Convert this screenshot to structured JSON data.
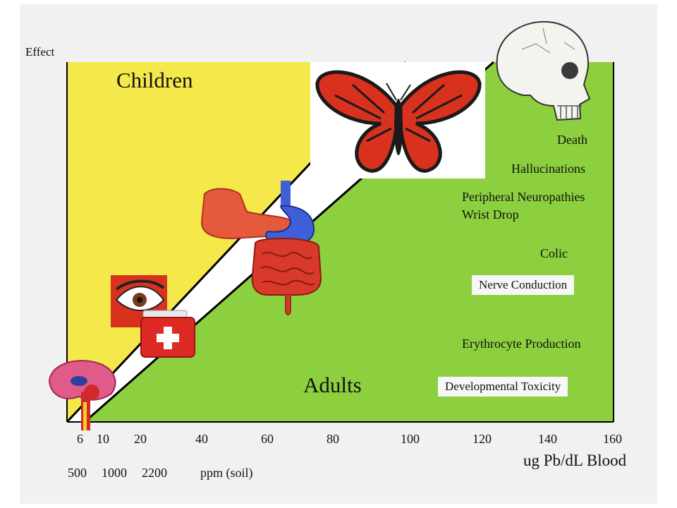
{
  "axis": {
    "y_label": "Effect",
    "x_label": "ug Pb/dL Blood",
    "blood_ticks": [
      "6",
      "10",
      "20",
      "40",
      "60",
      "80",
      "100",
      "120",
      "140",
      "160"
    ],
    "soil_ticks": [
      "500",
      "1000",
      "2200"
    ],
    "soil_unit": "ppm (soil)"
  },
  "regions": {
    "children": "Children",
    "adults": "Adults"
  },
  "effects": {
    "death": "Death",
    "hallucinations": "Hallucinations",
    "neuropathies": "Peripheral Neuropathies",
    "wrist_drop": "Wrist Drop",
    "colic": "Colic",
    "nerve_conduction": "Nerve Conduction",
    "erythrocyte": "Erythrocyte Production",
    "developmental": "Developmental Toxicity"
  },
  "colors": {
    "children_region": "#f5e84a",
    "adults_region": "#8ccf3f",
    "butterfly": "#d8321f",
    "stomach": "#3f5fd8",
    "intestine": "#d8392a"
  }
}
